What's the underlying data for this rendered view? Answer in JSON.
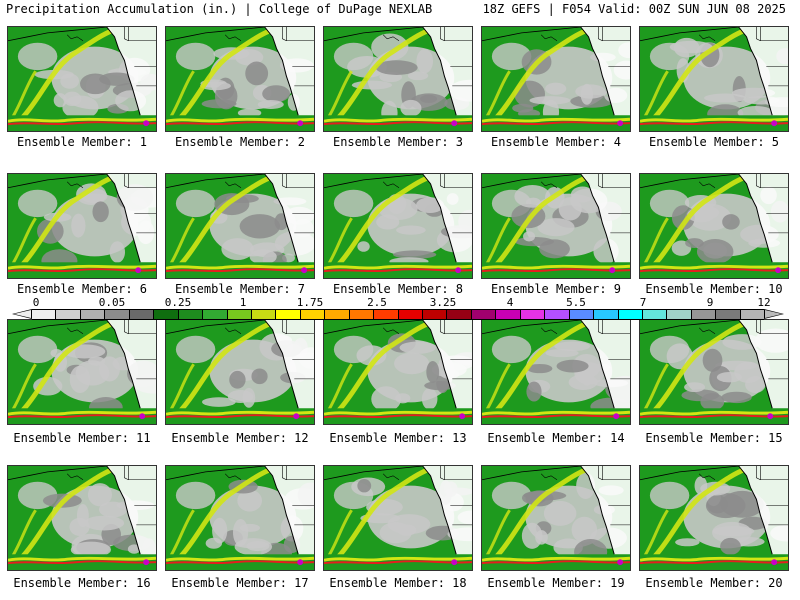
{
  "header": {
    "left": "Precipitation Accumulation (in.) | College of DuPage NEXLAB",
    "right": "18Z GEFS | F054 Valid: 00Z SUN JUN 08 2025"
  },
  "panels": [
    {
      "caption": "Ensemble Member: 1"
    },
    {
      "caption": "Ensemble Member: 2"
    },
    {
      "caption": "Ensemble Member: 3"
    },
    {
      "caption": "Ensemble Member: 4"
    },
    {
      "caption": "Ensemble Member: 5"
    },
    {
      "caption": "Ensemble Member: 6"
    },
    {
      "caption": "Ensemble Member: 7"
    },
    {
      "caption": "Ensemble Member: 8"
    },
    {
      "caption": "Ensemble Member: 9"
    },
    {
      "caption": "Ensemble Member: 10"
    },
    {
      "caption": "Ensemble Member: 11"
    },
    {
      "caption": "Ensemble Member: 12"
    },
    {
      "caption": "Ensemble Member: 13"
    },
    {
      "caption": "Ensemble Member: 14"
    },
    {
      "caption": "Ensemble Member: 15"
    },
    {
      "caption": "Ensemble Member: 16"
    },
    {
      "caption": "Ensemble Member: 17"
    },
    {
      "caption": "Ensemble Member: 18"
    },
    {
      "caption": "Ensemble Member: 19"
    },
    {
      "caption": "Ensemble Member: 20"
    }
  ],
  "colorbar": {
    "labels": [
      "0",
      "0.05",
      "0.25",
      "1",
      "1.75",
      "2.5",
      "3.25",
      "4",
      "5.5",
      "7",
      "9",
      "12"
    ],
    "colors": [
      "#eeeeee",
      "#d0d0d0",
      "#b0b0b0",
      "#8c8c8c",
      "#6a6a6a",
      "#0f6e0f",
      "#1e8c1e",
      "#32aa32",
      "#78c81e",
      "#c8dc14",
      "#ffff00",
      "#ffd200",
      "#ffaa00",
      "#ff7800",
      "#ff3c00",
      "#e60000",
      "#be0000",
      "#960014",
      "#a0006e",
      "#c800b4",
      "#e632e6",
      "#b450ff",
      "#5a8cff",
      "#28c8ff",
      "#00ffff",
      "#64e6dc",
      "#a0d2c8",
      "#969696",
      "#7a7a7a",
      "#b4b4b4"
    ]
  },
  "map_colors": {
    "land": "#ffffff",
    "precip_light": "#1e9a1e",
    "precip_grey": "#c8c8c8",
    "precip_dark_grey": "#8c8c8c",
    "precip_yellow": "#d2e614",
    "precip_red": "#e61e1e",
    "precip_magenta": "#c800c8",
    "coastline": "#000000"
  }
}
